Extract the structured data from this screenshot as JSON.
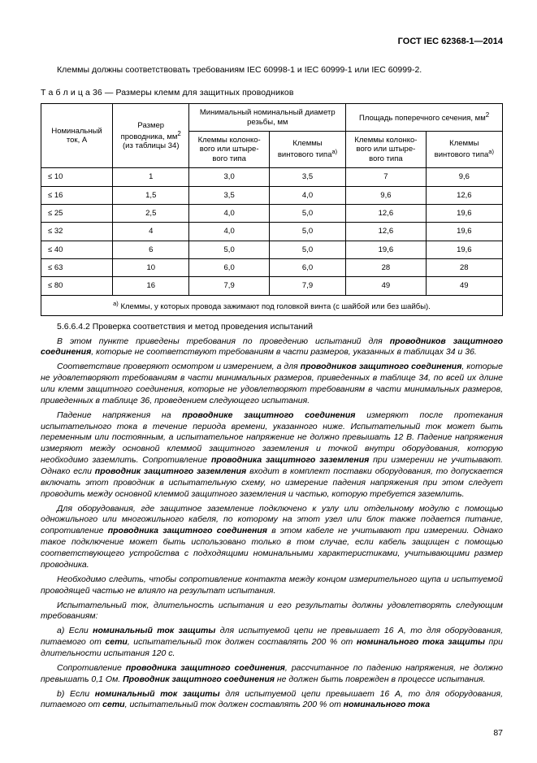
{
  "header": "ГОСТ IEC 62368-1—2014",
  "intro": "Клеммы должны соответствовать требованиям IEC 60998-1 и IEC 60999-1 или IEC 60999-2.",
  "table_caption_prefix": "Т а б л и ц а",
  "table_caption_num": "  36 — Размеры клемм для защитных проводников",
  "table": {
    "head": {
      "c1": "Номинальный ток, А",
      "c2a": "Размер",
      "c2b": "проводника, мм",
      "c2c": "(из таблицы 34)",
      "g1": "Минимальный номинальный диаметр резьбы, мм",
      "g2": "Площадь поперечного сечения, мм",
      "s1": "Клеммы колонко-вого или штыре-вого типа",
      "s2": "Клеммы",
      "s2b": "винтового типа",
      "s3": "Клеммы колонко-вого или штыре-вого типа",
      "s4": "Клеммы",
      "s4b": "винтового типа"
    },
    "rows": [
      {
        "c1": "≤ 10",
        "c2": "1",
        "c3": "3,0",
        "c4": "3,5",
        "c5": "7",
        "c6": "9,6"
      },
      {
        "c1": "≤ 16",
        "c2": "1,5",
        "c3": "3,5",
        "c4": "4,0",
        "c5": "9,6",
        "c6": "12,6"
      },
      {
        "c1": "≤ 25",
        "c2": "2,5",
        "c3": "4,0",
        "c4": "5,0",
        "c5": "12,6",
        "c6": "19,6"
      },
      {
        "c1": "≤ 32",
        "c2": "4",
        "c3": "4,0",
        "c4": "5,0",
        "c5": "12,6",
        "c6": "19,6"
      },
      {
        "c1": "≤ 40",
        "c2": "6",
        "c3": "5,0",
        "c4": "5,0",
        "c5": "19,6",
        "c6": "19,6"
      },
      {
        "c1": "≤ 63",
        "c2": "10",
        "c3": "6,0",
        "c4": "6,0",
        "c5": "28",
        "c6": "28"
      },
      {
        "c1": "≤ 80",
        "c2": "16",
        "c3": "7,9",
        "c4": "7,9",
        "c5": "49",
        "c6": "49"
      }
    ],
    "footnote_sup": "a)",
    "footnote": " Клеммы, у которых провода зажимают под головкой винта (с шайбой или без шайбы)."
  },
  "section_num": "5.6.6.4.2 Проверка соответствия и метод проведения испытаний",
  "p1a": "В этом пункте приведены требования по проведению испытаний для ",
  "p1b": "проводников защитного соединения",
  "p1c": ", которые не соответствуют требованиям в части размеров, указанных в таблицах 34 и 36.",
  "p2a": "Соответствие проверяют осмотром и измерением, а для ",
  "p2b": "проводников защитного соединения",
  "p2c": ", которые не удовлетворяют требованиям в части минимальных размеров, приведенных в таблице 34, по всей их длине или клемм защитного соединения, которые не удовлетворяют требованиям в части минимальных размеров, приведенных в таблице 36, проведением следующего испытания.",
  "p3a": "Падение напряжения на ",
  "p3b": "проводнике защитного соединения",
  "p3c": " измеряют после протекания испытательного тока в течение периода времени, указанного ниже. Испытательный ток может быть переменным или постоянным, а испытательное напряжение не должно превышать 12 В. Падение напряжения измеряют между основной клеммой защитного заземления и точкой внутри оборудования, которую необходимо заземлить. Сопротивление ",
  "p3d": "проводника защитного заземления",
  "p3e": " при измерении не учитывают. Однако если ",
  "p3f": "проводник защитного заземления",
  "p3g": " входит в комплект поставки оборудования, то допускается включать этот проводник в испытательную схему, но измерение падения напряжения при этом следует проводить между основной клеммой защитного заземления и частью, которую требуется заземлить.",
  "p4a": "Для оборудования, где защитное заземление подключено к узлу или отдельному модулю с помощью одножильного или многожильного кабеля, по которому на этот узел или блок также подается питание, сопротивление ",
  "p4b": "проводника защитного соединения",
  "p4c": " в этом кабеле не учитывают при измерении. Однако такое подключение может быть использовано только в том случае, если кабель защищен с помощью соответствующего устройства с подходящими номинальными характеристиками, учитывающими размер проводника.",
  "p5": "Необходимо следить, чтобы сопротивление контакта между концом измерительного щупа и испытуемой проводящей частью не влияло на результат испытания.",
  "p6": "Испытательный ток, длительность испытания и его результаты должны удовлетворять следующим требованиям:",
  "p7a": "a) Если ",
  "p7b": "номинальный ток защиты",
  "p7c": " для испытуемой цепи не превышает 16 А, то для оборудования, питаемого от ",
  "p7d": "сети",
  "p7e": ", испытательный ток должен составлять 200 % от ",
  "p7f": "номинального тока защиты",
  "p7g": " при длительности испытания 120 с.",
  "p8a": "Сопротивление ",
  "p8b": "проводника защитного соединения",
  "p8c": ", рассчитанное по падению напряжения, не должно превышать 0,1 Ом. ",
  "p8d": "Проводник защитного соединения",
  "p8e": " не должен быть поврежден в процессе испытания.",
  "p9a": "b) Если ",
  "p9b": "номинальный ток защиты",
  "p9c": " для испытуемой цепи превышает 16 А, то для оборудования, питаемого от ",
  "p9d": "сети",
  "p9e": ", испытательный ток должен составлять 200 % от ",
  "p9f": "номинального тока",
  "page_num": "87"
}
